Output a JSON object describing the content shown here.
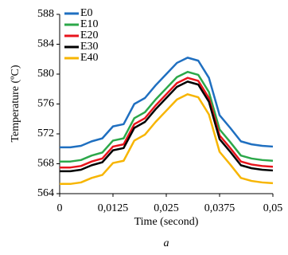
{
  "chart_data": {
    "type": "line",
    "xlabel": "Time (second)",
    "ylabel": "Temperature (ºC)",
    "caption": "a",
    "x": [
      0,
      0.0025,
      0.005,
      0.0075,
      0.01,
      0.0125,
      0.015,
      0.0175,
      0.02,
      0.0225,
      0.025,
      0.0275,
      0.03,
      0.0325,
      0.035,
      0.0375,
      0.04,
      0.0425,
      0.045,
      0.0475,
      0.05
    ],
    "series": [
      {
        "name": "E0",
        "color": "#1f6fc0",
        "values": [
          570.2,
          570.2,
          570.4,
          571.0,
          571.4,
          573.0,
          573.3,
          576.0,
          576.8,
          578.5,
          580.0,
          581.5,
          582.2,
          581.8,
          579.5,
          574.5,
          572.8,
          571.0,
          570.6,
          570.4,
          570.3
        ]
      },
      {
        "name": "E10",
        "color": "#2ca84a",
        "values": [
          568.3,
          568.3,
          568.5,
          569.1,
          569.5,
          571.1,
          571.4,
          574.1,
          574.9,
          576.6,
          578.1,
          579.6,
          580.3,
          579.9,
          577.6,
          572.6,
          570.9,
          569.1,
          568.7,
          568.5,
          568.4
        ]
      },
      {
        "name": "E20",
        "color": "#e8141c",
        "values": [
          567.5,
          567.5,
          567.7,
          568.3,
          568.7,
          570.3,
          570.6,
          573.3,
          574.1,
          575.8,
          577.3,
          578.8,
          579.5,
          579.1,
          576.8,
          571.8,
          570.1,
          568.3,
          567.9,
          567.7,
          567.6
        ]
      },
      {
        "name": "E30",
        "color": "#000000",
        "values": [
          567.0,
          567.0,
          567.2,
          567.8,
          568.2,
          569.8,
          570.1,
          572.8,
          573.6,
          575.3,
          576.8,
          578.3,
          579.0,
          578.6,
          576.3,
          571.3,
          569.6,
          567.8,
          567.4,
          567.2,
          567.1
        ]
      },
      {
        "name": "E40",
        "color": "#f7b500",
        "values": [
          565.3,
          565.3,
          565.5,
          566.1,
          566.5,
          568.1,
          568.4,
          571.1,
          571.9,
          573.6,
          575.1,
          576.6,
          577.3,
          576.9,
          574.6,
          569.6,
          567.9,
          566.1,
          565.7,
          565.5,
          565.4
        ]
      }
    ],
    "xlim": [
      0,
      0.05
    ],
    "xticks": [
      0,
      {
        "value": 0.0125,
        "label": "0,0125"
      },
      {
        "value": 0.025,
        "label": "0,025"
      },
      {
        "value": 0.0375,
        "label": "0,0375"
      },
      {
        "value": 0.05,
        "label": "0,05"
      }
    ],
    "ylim": [
      564,
      588
    ],
    "yticks": [
      564,
      568,
      572,
      576,
      580,
      584,
      588
    ],
    "grid": false,
    "legend": "upper left"
  }
}
